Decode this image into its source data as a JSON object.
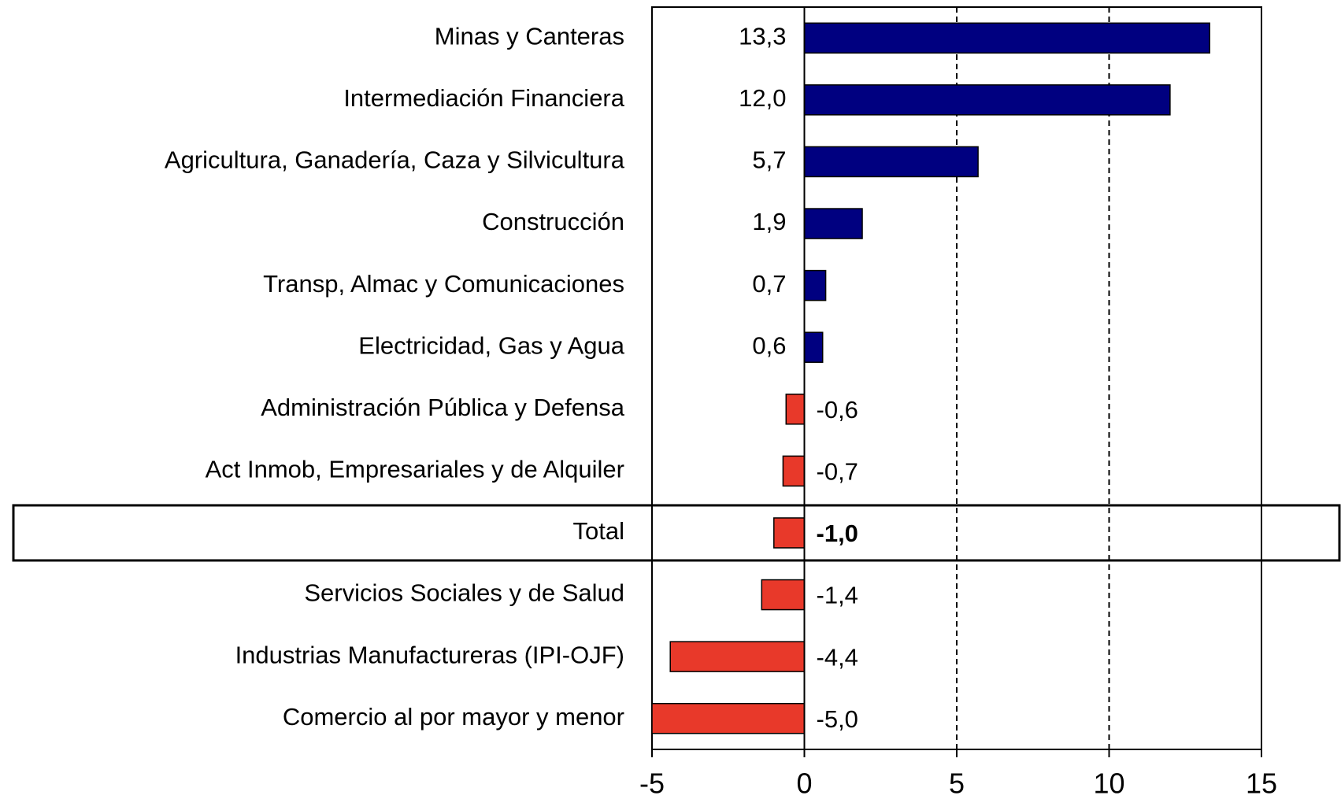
{
  "chart_data": {
    "type": "hbar",
    "categories": [
      "Minas y Canteras",
      "Intermediación Financiera",
      "Agricultura, Ganadería, Caza y Silvicultura",
      "Construcción",
      "Transp, Almac y Comunicaciones",
      "Electricidad, Gas y Agua",
      "Administración Pública y Defensa",
      "Act Inmob, Empresariales y de Alquiler",
      "Total",
      "Servicios Sociales y de Salud",
      "Industrias Manufactureras (IPI-OJF)",
      "Comercio al por mayor y menor"
    ],
    "values": [
      13.3,
      12.0,
      5.7,
      1.9,
      0.7,
      0.6,
      -0.6,
      -0.7,
      -1.0,
      -1.4,
      -4.4,
      -5.0
    ],
    "value_labels": [
      "13,3",
      "12,0",
      "5,7",
      "1,9",
      "0,7",
      "0,6",
      "-0,6",
      "-0,7",
      "-1,0",
      "-1,4",
      "-4,4",
      "-5,0"
    ],
    "color_positive": "#000080",
    "color_negative": "#e8392a",
    "xlim": [
      -5,
      15
    ],
    "xticks": [
      -5,
      0,
      5,
      10,
      15
    ],
    "grid": true
  }
}
